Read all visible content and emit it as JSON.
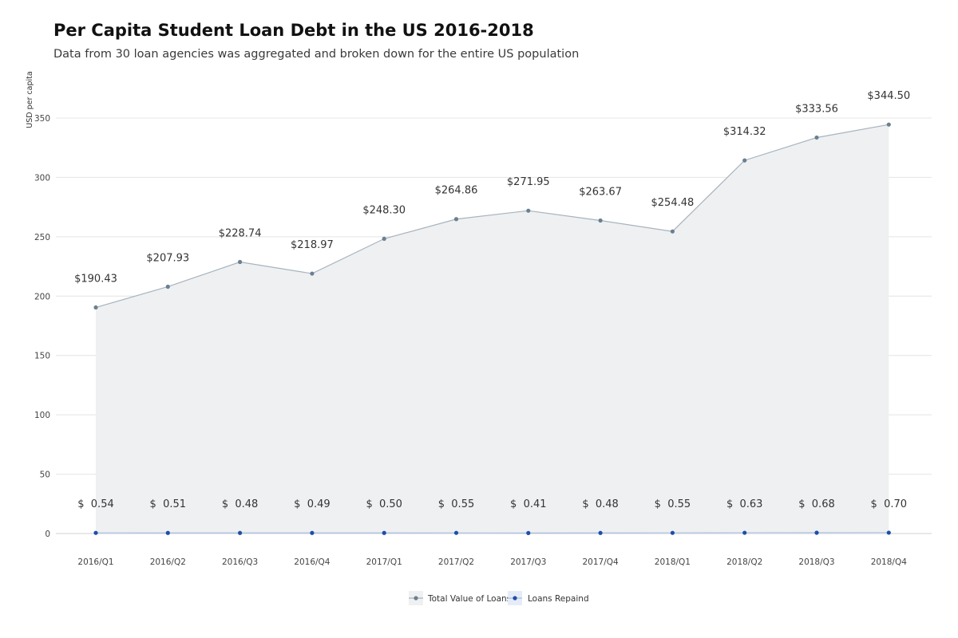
{
  "chart_data": {
    "type": "line",
    "title": "Per Capita Student Loan Debt in the US 2016-2018",
    "subtitle": "Data from 30 loan agencies was aggregated and broken down for the entire US population",
    "ylabel": "USD per capita",
    "xlabel": "",
    "categories": [
      "2016/Q1",
      "2016/Q2",
      "2016/Q3",
      "2016/Q4",
      "2017/Q1",
      "2017/Q2",
      "2017/Q3",
      "2017/Q4",
      "2018/Q1",
      "2018/Q2",
      "2018/Q3",
      "2018/Q4"
    ],
    "ylim": [
      0,
      350
    ],
    "yticks": [
      0,
      50,
      100,
      150,
      200,
      250,
      300,
      350
    ],
    "grid": true,
    "legend_position": "bottom-center",
    "series": [
      {
        "name": "Total Value of Loans",
        "color": "#6a8090",
        "area": true,
        "values": [
          190.43,
          207.93,
          228.74,
          218.97,
          248.3,
          264.86,
          271.95,
          263.67,
          254.48,
          314.32,
          333.56,
          344.5
        ],
        "labels": [
          "$190.43",
          "$207.93",
          "$228.74",
          "$218.97",
          "$248.30",
          "$264.86",
          "$271.95",
          "$263.67",
          "$254.48",
          "$314.32",
          "$333.56",
          "$344.50"
        ]
      },
      {
        "name": "Loans Repaind",
        "color": "#1d4ea8",
        "area": false,
        "values": [
          0.54,
          0.51,
          0.48,
          0.49,
          0.5,
          0.55,
          0.41,
          0.48,
          0.55,
          0.63,
          0.68,
          0.7
        ],
        "labels": [
          "$  0.54",
          "$  0.51",
          "$  0.48",
          "$  0.49",
          "$  0.50",
          "$  0.55",
          "$  0.41",
          "$  0.48",
          "$  0.55",
          "$  0.63",
          "$  0.68",
          "$  0.70"
        ]
      }
    ]
  }
}
